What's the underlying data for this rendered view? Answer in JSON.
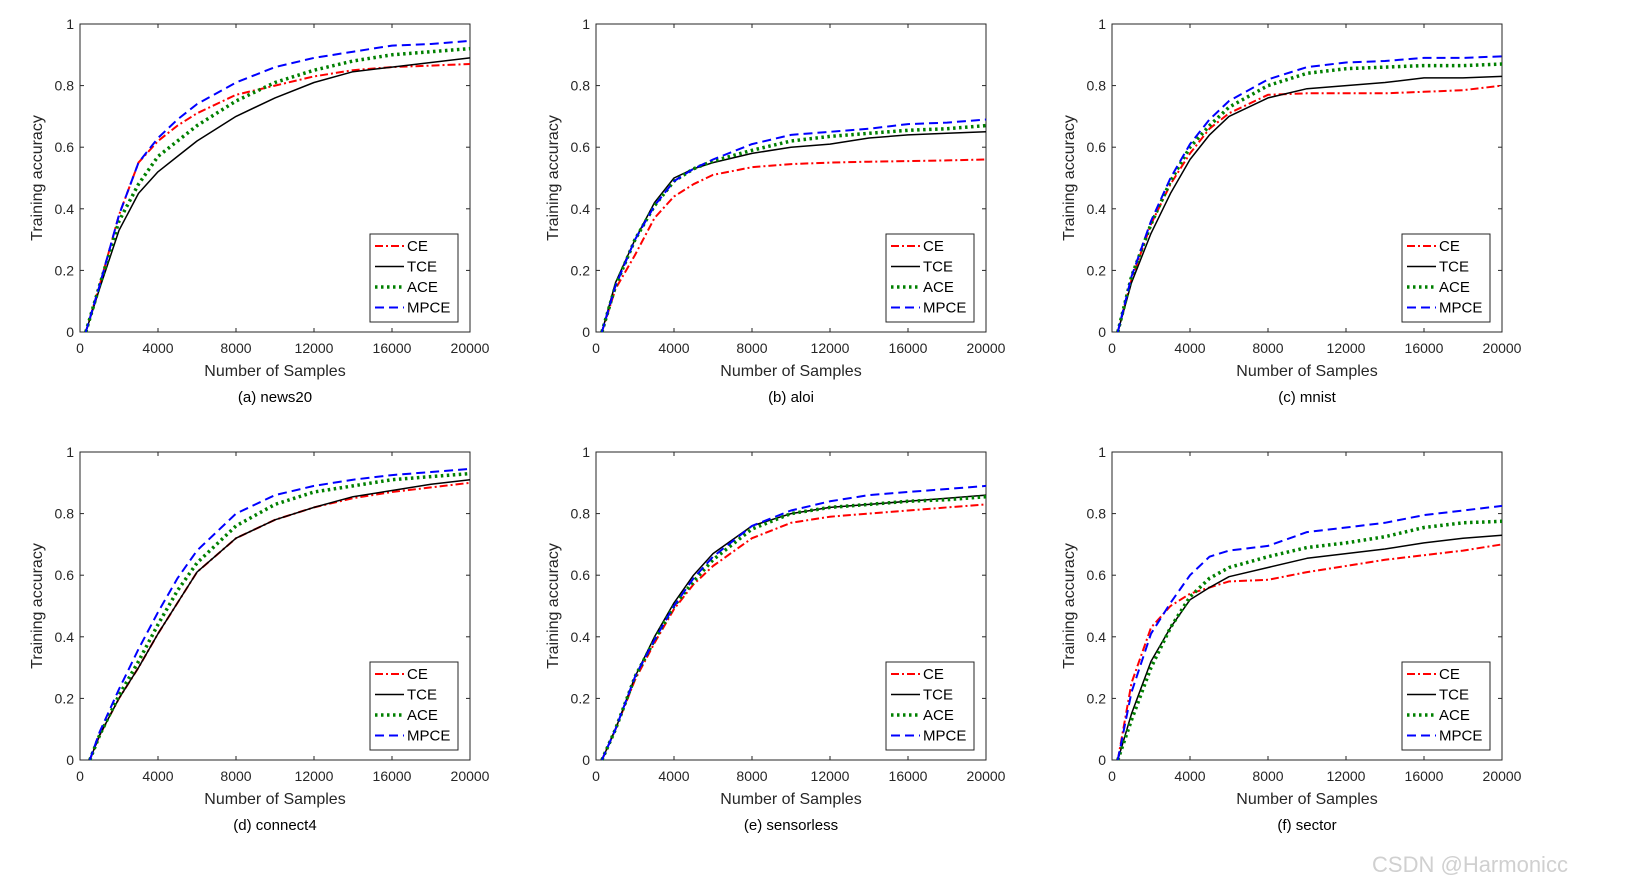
{
  "watermark": "CSDN @Harmonicc",
  "chart_data": [
    {
      "type": "line",
      "caption": "(a) news20",
      "xlabel": "Number of Samples",
      "ylabel": "Training accuracy",
      "xlim": [
        0,
        20000
      ],
      "ylim": [
        0,
        1
      ],
      "xticks": [
        "0",
        "4000",
        "8000",
        "12000",
        "16000",
        "20000"
      ],
      "yticks": [
        "0",
        "0.2",
        "0.4",
        "0.6",
        "0.8",
        "1"
      ],
      "grid": false,
      "legend_position": "bottom-right",
      "x": [
        300,
        1000,
        2000,
        3000,
        4000,
        5000,
        6000,
        8000,
        10000,
        12000,
        14000,
        16000,
        18000,
        20000
      ],
      "series": [
        {
          "name": "CE",
          "color": "#ff0000",
          "style": "dash-dot",
          "values": [
            0,
            0.15,
            0.38,
            0.55,
            0.62,
            0.67,
            0.71,
            0.77,
            0.8,
            0.83,
            0.85,
            0.86,
            0.865,
            0.87
          ]
        },
        {
          "name": "TCE",
          "color": "#000000",
          "style": "solid",
          "values": [
            0,
            0.14,
            0.33,
            0.45,
            0.52,
            0.57,
            0.62,
            0.7,
            0.76,
            0.81,
            0.845,
            0.86,
            0.875,
            0.89
          ]
        },
        {
          "name": "ACE",
          "color": "#008000",
          "style": "dotted",
          "values": [
            0,
            0.15,
            0.36,
            0.48,
            0.57,
            0.62,
            0.67,
            0.75,
            0.81,
            0.85,
            0.88,
            0.9,
            0.91,
            0.92
          ]
        },
        {
          "name": "MPCE",
          "color": "#0000ff",
          "style": "dashed",
          "values": [
            0,
            0.15,
            0.38,
            0.55,
            0.63,
            0.69,
            0.74,
            0.81,
            0.86,
            0.89,
            0.91,
            0.93,
            0.935,
            0.945
          ]
        }
      ]
    },
    {
      "type": "line",
      "caption": "(b) aloi",
      "xlabel": "Number of Samples",
      "ylabel": "Training accuracy",
      "xlim": [
        0,
        20000
      ],
      "ylim": [
        0,
        1
      ],
      "xticks": [
        "0",
        "4000",
        "8000",
        "12000",
        "16000",
        "20000"
      ],
      "yticks": [
        "0",
        "0.2",
        "0.4",
        "0.6",
        "0.8",
        "1"
      ],
      "grid": false,
      "legend_position": "bottom-right",
      "x": [
        300,
        1000,
        2000,
        3000,
        4000,
        5000,
        6000,
        8000,
        10000,
        12000,
        14000,
        16000,
        18000,
        20000
      ],
      "series": [
        {
          "name": "CE",
          "color": "#ff0000",
          "style": "dash-dot",
          "values": [
            0,
            0.14,
            0.25,
            0.37,
            0.44,
            0.48,
            0.51,
            0.535,
            0.545,
            0.55,
            0.553,
            0.555,
            0.557,
            0.56
          ]
        },
        {
          "name": "TCE",
          "color": "#000000",
          "style": "solid",
          "values": [
            0,
            0.16,
            0.3,
            0.42,
            0.5,
            0.53,
            0.55,
            0.58,
            0.6,
            0.61,
            0.63,
            0.64,
            0.645,
            0.65
          ]
        },
        {
          "name": "ACE",
          "color": "#008000",
          "style": "dotted",
          "values": [
            0,
            0.15,
            0.3,
            0.41,
            0.49,
            0.53,
            0.555,
            0.59,
            0.62,
            0.635,
            0.645,
            0.655,
            0.66,
            0.67
          ]
        },
        {
          "name": "MPCE",
          "color": "#0000ff",
          "style": "dashed",
          "values": [
            0,
            0.15,
            0.3,
            0.41,
            0.49,
            0.53,
            0.56,
            0.61,
            0.64,
            0.65,
            0.66,
            0.675,
            0.68,
            0.69
          ]
        }
      ]
    },
    {
      "type": "line",
      "caption": "(c) mnist",
      "xlabel": "Number of Samples",
      "ylabel": "Training accuracy",
      "xlim": [
        0,
        20000
      ],
      "ylim": [
        0,
        1
      ],
      "xticks": [
        "0",
        "4000",
        "8000",
        "12000",
        "16000",
        "20000"
      ],
      "yticks": [
        "0",
        "0.2",
        "0.4",
        "0.6",
        "0.8",
        "1"
      ],
      "grid": false,
      "legend_position": "bottom-right",
      "x": [
        300,
        1000,
        2000,
        3000,
        4000,
        5000,
        6000,
        8000,
        10000,
        12000,
        14000,
        16000,
        18000,
        20000
      ],
      "series": [
        {
          "name": "CE",
          "color": "#ff0000",
          "style": "dash-dot",
          "values": [
            0,
            0.17,
            0.35,
            0.48,
            0.58,
            0.66,
            0.71,
            0.77,
            0.775,
            0.775,
            0.775,
            0.78,
            0.785,
            0.8
          ]
        },
        {
          "name": "TCE",
          "color": "#000000",
          "style": "solid",
          "values": [
            0,
            0.16,
            0.32,
            0.45,
            0.56,
            0.64,
            0.7,
            0.76,
            0.79,
            0.8,
            0.81,
            0.825,
            0.825,
            0.83
          ]
        },
        {
          "name": "ACE",
          "color": "#008000",
          "style": "dotted",
          "values": [
            0,
            0.18,
            0.35,
            0.49,
            0.6,
            0.67,
            0.73,
            0.8,
            0.84,
            0.855,
            0.86,
            0.865,
            0.865,
            0.87
          ]
        },
        {
          "name": "MPCE",
          "color": "#0000ff",
          "style": "dashed",
          "values": [
            0,
            0.18,
            0.36,
            0.5,
            0.61,
            0.69,
            0.75,
            0.82,
            0.86,
            0.875,
            0.88,
            0.89,
            0.89,
            0.895
          ]
        }
      ]
    },
    {
      "type": "line",
      "caption": "(d) connect4",
      "xlabel": "Number of Samples",
      "ylabel": "Training accuracy",
      "xlim": [
        0,
        20000
      ],
      "ylim": [
        0,
        1
      ],
      "xticks": [
        "0",
        "4000",
        "8000",
        "12000",
        "16000",
        "20000"
      ],
      "yticks": [
        "0",
        "0.2",
        "0.4",
        "0.6",
        "0.8",
        "1"
      ],
      "grid": false,
      "legend_position": "bottom-right",
      "x": [
        500,
        1000,
        2000,
        3000,
        4000,
        5000,
        6000,
        8000,
        10000,
        12000,
        14000,
        16000,
        18000,
        20000
      ],
      "series": [
        {
          "name": "CE",
          "color": "#ff0000",
          "style": "dash-dot",
          "values": [
            0,
            0.08,
            0.2,
            0.3,
            0.41,
            0.51,
            0.61,
            0.72,
            0.78,
            0.82,
            0.85,
            0.87,
            0.885,
            0.9
          ]
        },
        {
          "name": "TCE",
          "color": "#000000",
          "style": "solid",
          "values": [
            0,
            0.08,
            0.2,
            0.3,
            0.41,
            0.51,
            0.61,
            0.72,
            0.78,
            0.82,
            0.855,
            0.875,
            0.895,
            0.91
          ]
        },
        {
          "name": "ACE",
          "color": "#008000",
          "style": "dotted",
          "values": [
            0,
            0.08,
            0.21,
            0.32,
            0.44,
            0.55,
            0.64,
            0.76,
            0.83,
            0.87,
            0.89,
            0.91,
            0.92,
            0.93
          ]
        },
        {
          "name": "MPCE",
          "color": "#0000ff",
          "style": "dashed",
          "values": [
            0,
            0.09,
            0.23,
            0.36,
            0.48,
            0.59,
            0.68,
            0.8,
            0.86,
            0.89,
            0.91,
            0.925,
            0.935,
            0.945
          ]
        }
      ]
    },
    {
      "type": "line",
      "caption": "(e) sensorless",
      "xlabel": "Number of Samples",
      "ylabel": "Training accuracy",
      "xlim": [
        0,
        20000
      ],
      "ylim": [
        0,
        1
      ],
      "xticks": [
        "0",
        "4000",
        "8000",
        "12000",
        "16000",
        "20000"
      ],
      "yticks": [
        "0",
        "0.2",
        "0.4",
        "0.6",
        "0.8",
        "1"
      ],
      "grid": false,
      "legend_position": "bottom-right",
      "x": [
        300,
        1000,
        2000,
        3000,
        4000,
        5000,
        6000,
        8000,
        10000,
        12000,
        14000,
        16000,
        18000,
        20000
      ],
      "series": [
        {
          "name": "CE",
          "color": "#ff0000",
          "style": "dash-dot",
          "values": [
            0,
            0.1,
            0.26,
            0.38,
            0.49,
            0.57,
            0.63,
            0.72,
            0.77,
            0.79,
            0.8,
            0.81,
            0.82,
            0.83
          ]
        },
        {
          "name": "TCE",
          "color": "#000000",
          "style": "solid",
          "values": [
            0,
            0.1,
            0.27,
            0.4,
            0.51,
            0.6,
            0.67,
            0.76,
            0.8,
            0.82,
            0.83,
            0.84,
            0.85,
            0.86
          ]
        },
        {
          "name": "ACE",
          "color": "#008000",
          "style": "dotted",
          "values": [
            0,
            0.1,
            0.27,
            0.39,
            0.5,
            0.58,
            0.65,
            0.75,
            0.8,
            0.82,
            0.83,
            0.84,
            0.845,
            0.855
          ]
        },
        {
          "name": "MPCE",
          "color": "#0000ff",
          "style": "dashed",
          "values": [
            0,
            0.1,
            0.27,
            0.39,
            0.5,
            0.59,
            0.66,
            0.76,
            0.81,
            0.84,
            0.86,
            0.87,
            0.88,
            0.89
          ]
        }
      ]
    },
    {
      "type": "line",
      "caption": "(f) sector",
      "xlabel": "Number of Samples",
      "ylabel": "Training accuracy",
      "xlim": [
        0,
        20000
      ],
      "ylim": [
        0,
        1
      ],
      "xticks": [
        "0",
        "4000",
        "8000",
        "12000",
        "16000",
        "20000"
      ],
      "yticks": [
        "0",
        "0.2",
        "0.4",
        "0.6",
        "0.8",
        "1"
      ],
      "grid": false,
      "legend_position": "bottom-right",
      "x": [
        300,
        1000,
        2000,
        3000,
        4000,
        5000,
        6000,
        8000,
        10000,
        12000,
        14000,
        16000,
        18000,
        20000
      ],
      "series": [
        {
          "name": "CE",
          "color": "#ff0000",
          "style": "dash-dot",
          "values": [
            0,
            0.25,
            0.43,
            0.5,
            0.54,
            0.56,
            0.58,
            0.585,
            0.61,
            0.63,
            0.65,
            0.665,
            0.68,
            0.7
          ]
        },
        {
          "name": "TCE",
          "color": "#000000",
          "style": "solid",
          "values": [
            0,
            0.15,
            0.32,
            0.43,
            0.52,
            0.56,
            0.595,
            0.625,
            0.655,
            0.67,
            0.685,
            0.705,
            0.72,
            0.73
          ]
        },
        {
          "name": "ACE",
          "color": "#008000",
          "style": "dotted",
          "values": [
            0,
            0.13,
            0.3,
            0.43,
            0.53,
            0.59,
            0.625,
            0.66,
            0.69,
            0.705,
            0.725,
            0.755,
            0.77,
            0.775
          ]
        },
        {
          "name": "MPCE",
          "color": "#0000ff",
          "style": "dashed",
          "values": [
            0,
            0.22,
            0.41,
            0.51,
            0.6,
            0.66,
            0.68,
            0.695,
            0.74,
            0.755,
            0.77,
            0.795,
            0.81,
            0.825
          ]
        }
      ]
    }
  ]
}
